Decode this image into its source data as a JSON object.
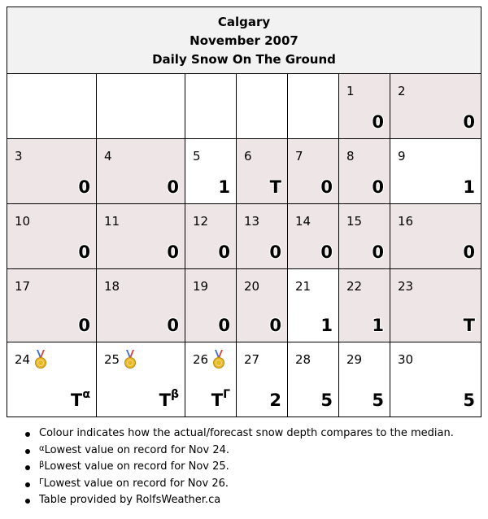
{
  "header": {
    "city": "Calgary",
    "month": "November 2007",
    "title": "Daily Snow On The Ground"
  },
  "colors": {
    "normal": "#eee5e6",
    "above": "#c10000",
    "record_low": "#1f4fdc",
    "slightly_above": "#efaa99",
    "empty": "#ffffff"
  },
  "chart_data": {
    "type": "table",
    "month": "November 2007",
    "days": [
      {
        "day": "1",
        "value": "0",
        "category": "normal"
      },
      {
        "day": "2",
        "value": "0",
        "category": "normal"
      },
      {
        "day": "3",
        "value": "0",
        "category": "normal"
      },
      {
        "day": "4",
        "value": "0",
        "category": "normal"
      },
      {
        "day": "5",
        "value": "1",
        "category": "above"
      },
      {
        "day": "6",
        "value": "T",
        "category": "normal"
      },
      {
        "day": "7",
        "value": "0",
        "category": "normal"
      },
      {
        "day": "8",
        "value": "0",
        "category": "normal"
      },
      {
        "day": "9",
        "value": "1",
        "category": "above"
      },
      {
        "day": "10",
        "value": "0",
        "category": "normal"
      },
      {
        "day": "11",
        "value": "0",
        "category": "normal"
      },
      {
        "day": "12",
        "value": "0",
        "category": "normal"
      },
      {
        "day": "13",
        "value": "0",
        "category": "normal"
      },
      {
        "day": "14",
        "value": "0",
        "category": "normal"
      },
      {
        "day": "15",
        "value": "0",
        "category": "normal"
      },
      {
        "day": "16",
        "value": "0",
        "category": "normal"
      },
      {
        "day": "17",
        "value": "0",
        "category": "normal"
      },
      {
        "day": "18",
        "value": "0",
        "category": "normal"
      },
      {
        "day": "19",
        "value": "0",
        "category": "normal"
      },
      {
        "day": "20",
        "value": "0",
        "category": "normal"
      },
      {
        "day": "21",
        "value": "1",
        "category": "above"
      },
      {
        "day": "22",
        "value": "1",
        "category": "normal"
      },
      {
        "day": "23",
        "value": "T",
        "category": "normal"
      },
      {
        "day": "24",
        "value": "T",
        "sup": "α",
        "category": "record_low",
        "medal": true
      },
      {
        "day": "25",
        "value": "T",
        "sup": "β",
        "category": "record_low",
        "medal": true
      },
      {
        "day": "26",
        "value": "T",
        "sup": "Γ",
        "category": "record_low",
        "medal": true
      },
      {
        "day": "27",
        "value": "2",
        "category": "slightly_above"
      },
      {
        "day": "28",
        "value": "5",
        "category": "above"
      },
      {
        "day": "29",
        "value": "5",
        "category": "above"
      },
      {
        "day": "30",
        "value": "5",
        "category": "above"
      }
    ]
  },
  "notes": [
    {
      "sup": "",
      "text": "Colour indicates how the actual/forecast snow depth compares to the median."
    },
    {
      "sup": "α",
      "text": "Lowest value on record for Nov 24."
    },
    {
      "sup": "β",
      "text": "Lowest value on record for Nov 25."
    },
    {
      "sup": "Γ",
      "text": "Lowest value on record for Nov 26."
    },
    {
      "sup": "",
      "text": "Table provided by RolfsWeather.ca"
    }
  ]
}
